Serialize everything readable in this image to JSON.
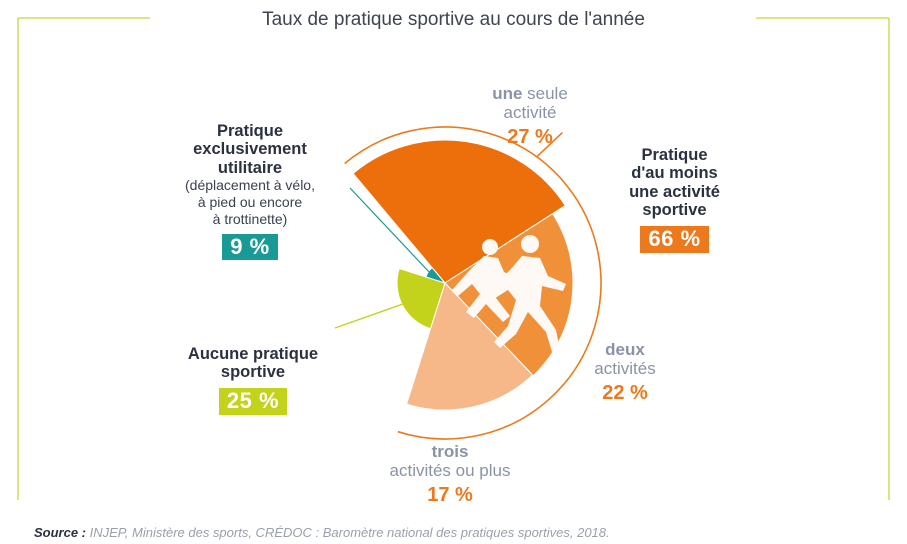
{
  "chart_data": {
    "type": "pie",
    "title": "Taux de pratique sportive au cours de l'année",
    "slices": [
      {
        "key": "une",
        "name": "une seule activité",
        "value": 27,
        "color": "#ec6f0c"
      },
      {
        "key": "deux",
        "name": "deux activités",
        "value": 22,
        "color": "#f0913a"
      },
      {
        "key": "trois",
        "name": "trois activités ou plus",
        "value": 17,
        "color": "#f6b888"
      },
      {
        "key": "aucune",
        "name": "Aucune pratique sportive",
        "value": 25,
        "color": "#c3d31c"
      },
      {
        "key": "util",
        "name": "Pratique exclusivement utilitaire",
        "value": 9,
        "color": "#1a9a96"
      }
    ],
    "group": {
      "name": "Pratique d'au moins une activité sportive",
      "value": 66
    }
  },
  "labels": {
    "une": {
      "bold": "une",
      "rest": " seule",
      "line2": "activité",
      "pct": "27 %"
    },
    "deux": {
      "bold": "deux",
      "line2": "activités",
      "pct": "22 %"
    },
    "trois": {
      "bold": "trois",
      "line2": "activités ou plus",
      "pct": "17 %"
    },
    "aucune": {
      "line1": "Aucune pratique",
      "line2": "sportive",
      "pct": "25 %"
    },
    "util": {
      "line1": "Pratique",
      "line2": "exclusivement",
      "line3": "utilitaire",
      "note1": "(déplacement à vélo,",
      "note2": "à pied ou encore",
      "note3": "à trottinette)",
      "pct": "9 %"
    },
    "group": {
      "line1": "Pratique",
      "line2": "d'au moins",
      "line3": "une activité",
      "line4": "sportive",
      "pct": "66 %"
    }
  },
  "colors": {
    "frame": "#c9d63b",
    "orange": "#ec7a1c",
    "teal": "#1a9a96",
    "lime": "#c3d31c",
    "runner": "#ffffff"
  },
  "source": {
    "label": "Source :",
    "text": " INJEP, Ministère des sports, CRÉDOC : Baromètre national des pratiques sportives, 2018."
  }
}
